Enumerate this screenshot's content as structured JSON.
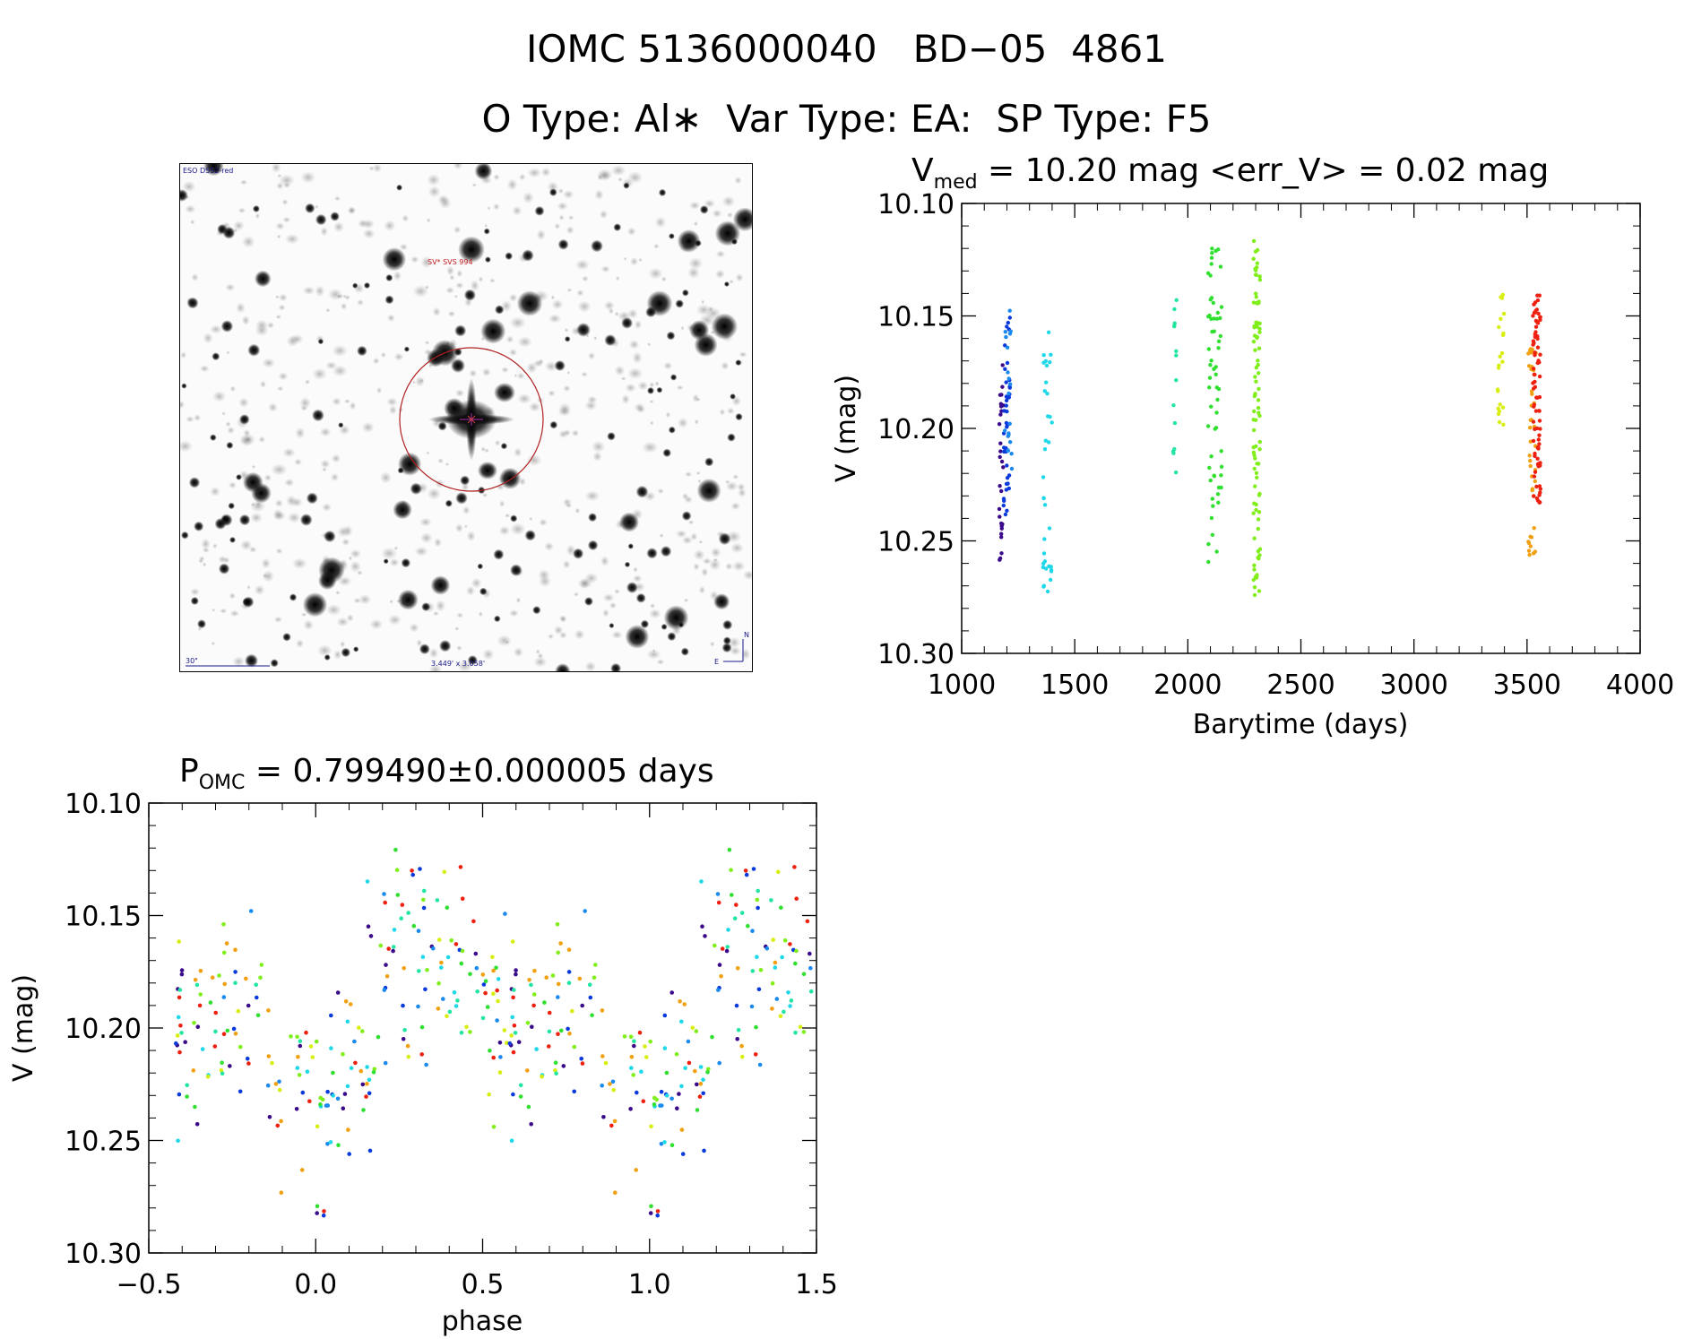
{
  "title_line1": "IOMC 5136000040   BD−05  4861",
  "title_line2": "O Type: Al∗  Var Type: EA:  SP Type: F5",
  "sky_image": {
    "survey_label": "ESO DSS2-red",
    "target_label": "SV* SVS 994",
    "scale_label": "30\"",
    "fov_label": "3.449' x 3.058'",
    "north_label": "N",
    "east_label": "E",
    "circle_color": "#b02020"
  },
  "chart_data": [
    {
      "id": "lightcurve",
      "type": "scatter",
      "title_main": "V",
      "title_sub": "med",
      "title_rest": " = 10.20 mag <err_V> = 0.02 mag",
      "xlabel": "Barytime (days)",
      "ylabel": "V (mag)",
      "xlim": [
        1000,
        4000
      ],
      "ylim": [
        10.3,
        10.1
      ],
      "xticks": [
        1000,
        1500,
        2000,
        2500,
        3000,
        3500,
        4000
      ],
      "yticks": [
        10.1,
        10.15,
        10.2,
        10.25,
        10.3
      ],
      "ytick_labels": [
        "10.10",
        "10.15",
        "10.20",
        "10.25",
        "10.30"
      ],
      "groups": [
        {
          "x": [
            1165,
            1185
          ],
          "y": [
            10.17,
            10.27
          ],
          "color": "#3a0a8a",
          "n": 28
        },
        {
          "x": [
            1185,
            1215
          ],
          "y": [
            10.145,
            10.24
          ],
          "color": "#0a3adc",
          "n": 40
        },
        {
          "x": [
            1190,
            1222
          ],
          "y": [
            10.145,
            10.22
          ],
          "color": "#1a8aee",
          "n": 20
        },
        {
          "x": [
            1360,
            1400
          ],
          "y": [
            10.155,
            10.273
          ],
          "color": "#1ed8e8",
          "n": 35
        },
        {
          "x": [
            1935,
            1950
          ],
          "y": [
            10.125,
            10.22
          ],
          "color": "#22e6a0",
          "n": 14
        },
        {
          "x": [
            2090,
            2150
          ],
          "y": [
            10.12,
            10.26
          ],
          "color": "#30e030",
          "n": 60
        },
        {
          "x": [
            2290,
            2320
          ],
          "y": [
            10.115,
            10.278
          ],
          "color": "#80ee1a",
          "n": 90
        },
        {
          "x": [
            3370,
            3400
          ],
          "y": [
            10.14,
            10.2
          ],
          "color": "#d8ee10",
          "n": 22
        },
        {
          "x": [
            3500,
            3540
          ],
          "y": [
            10.16,
            10.258
          ],
          "color": "#f0a010",
          "n": 40
        },
        {
          "x": [
            3525,
            3560
          ],
          "y": [
            10.14,
            10.235
          ],
          "color": "#ee2010",
          "n": 85
        }
      ]
    },
    {
      "id": "phased",
      "type": "scatter",
      "title_main": "P",
      "title_sub": "OMC",
      "title_rest": " = 0.799490±0.000005 days",
      "xlabel": "phase",
      "ylabel": "V (mag)",
      "xlim": [
        -0.5,
        1.5
      ],
      "ylim": [
        10.3,
        10.1
      ],
      "xticks": [
        -0.5,
        0.0,
        0.5,
        1.0,
        1.5
      ],
      "xtick_labels": [
        "−0.5",
        "0.0",
        "0.5",
        "1.0",
        "1.5"
      ],
      "yticks": [
        10.1,
        10.15,
        10.2,
        10.25,
        10.3
      ],
      "ytick_labels": [
        "10.10",
        "10.15",
        "10.20",
        "10.25",
        "10.30"
      ],
      "colors": [
        "#3a0a8a",
        "#0a3adc",
        "#1a8aee",
        "#1ed8e8",
        "#22e6a0",
        "#30e030",
        "#80ee1a",
        "#d8ee10",
        "#f0a010",
        "#ee2010"
      ],
      "phase_profile": [
        [
          -0.4,
          10.2
        ],
        [
          -0.3,
          10.195
        ],
        [
          -0.2,
          10.19
        ],
        [
          -0.14,
          10.205
        ],
        [
          -0.06,
          10.235
        ],
        [
          0.0,
          10.25
        ],
        [
          0.06,
          10.235
        ],
        [
          0.12,
          10.21
        ],
        [
          0.2,
          10.175
        ],
        [
          0.3,
          10.165
        ],
        [
          0.4,
          10.175
        ],
        [
          0.5,
          10.19
        ],
        [
          0.6,
          10.2
        ]
      ],
      "period_extent": [
        -0.42,
        0.58
      ]
    }
  ]
}
